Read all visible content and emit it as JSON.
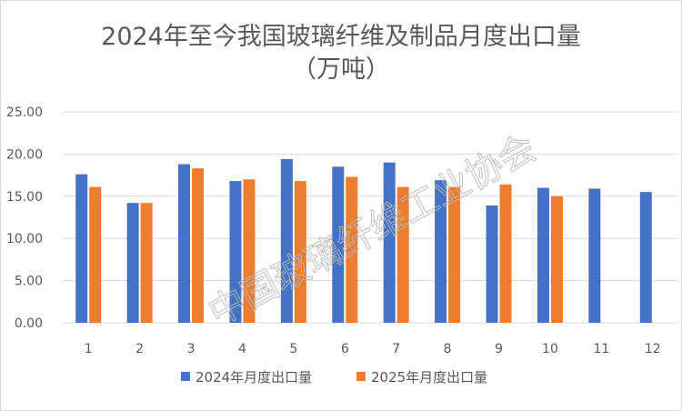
{
  "chart_data": {
    "type": "bar",
    "title": "2024年至今我国玻璃纤维及制品月度出口量",
    "subtitle": "（万吨）",
    "categories": [
      "1",
      "2",
      "3",
      "4",
      "5",
      "6",
      "7",
      "8",
      "9",
      "10",
      "11",
      "12"
    ],
    "series": [
      {
        "name": "2024年月度出口量",
        "color": "#4472c4",
        "values": [
          17.6,
          14.2,
          18.8,
          16.8,
          19.4,
          18.5,
          19.0,
          16.9,
          13.9,
          16.0,
          15.9,
          15.5
        ]
      },
      {
        "name": "2025年月度出口量",
        "color": "#ed7d31",
        "values": [
          16.1,
          14.2,
          18.3,
          17.0,
          16.8,
          17.3,
          16.1,
          16.1,
          16.4,
          15.0,
          null,
          null
        ]
      }
    ],
    "ylim": [
      0,
      25
    ],
    "yticks": [
      "0.00",
      "5.00",
      "10.00",
      "15.00",
      "20.00",
      "25.00"
    ],
    "ytick_values": [
      0,
      5,
      10,
      15,
      20,
      25
    ],
    "grid": true,
    "legend": "bottom"
  },
  "watermark": "中国玻璃纤维工业协会",
  "colors": {
    "grid": "#d9d9d9",
    "text": "#595959"
  }
}
